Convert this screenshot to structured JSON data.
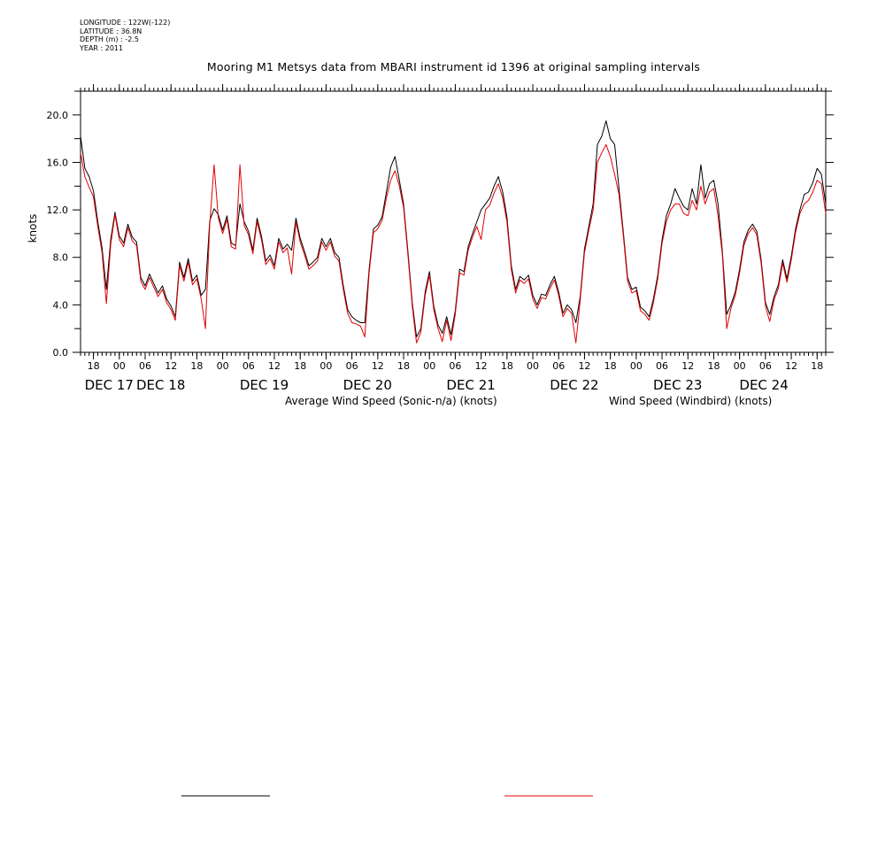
{
  "header": {
    "longitude": "LONGITUDE : 122W(-122)",
    "latitude": "LATITUDE : 36.8N",
    "depth": "DEPTH (m) : -2.5",
    "year": "YEAR : 2011"
  },
  "chart_data": {
    "type": "line",
    "title": "Mooring M1 Metsys data from MBARI instrument id 1396 at original sampling intervals",
    "ylabel": "knots",
    "xlabel": "",
    "ylim": [
      0,
      22
    ],
    "yticks": [
      0,
      4,
      8,
      12,
      16,
      20
    ],
    "ytick_labels": [
      "0.0",
      "4.0",
      "8.0",
      "12.0",
      "16.0",
      "20.0"
    ],
    "xlim_hours": [
      15,
      188
    ],
    "hour_ticks": [
      {
        "h": 18,
        "label": "18"
      },
      {
        "h": 24,
        "label": "00"
      },
      {
        "h": 30,
        "label": "06"
      },
      {
        "h": 36,
        "label": "12"
      },
      {
        "h": 42,
        "label": "18"
      },
      {
        "h": 48,
        "label": "00"
      },
      {
        "h": 54,
        "label": "06"
      },
      {
        "h": 60,
        "label": "12"
      },
      {
        "h": 66,
        "label": "18"
      },
      {
        "h": 72,
        "label": "00"
      },
      {
        "h": 78,
        "label": "06"
      },
      {
        "h": 84,
        "label": "12"
      },
      {
        "h": 90,
        "label": "18"
      },
      {
        "h": 96,
        "label": "00"
      },
      {
        "h": 102,
        "label": "06"
      },
      {
        "h": 108,
        "label": "12"
      },
      {
        "h": 114,
        "label": "18"
      },
      {
        "h": 120,
        "label": "00"
      },
      {
        "h": 126,
        "label": "06"
      },
      {
        "h": 132,
        "label": "12"
      },
      {
        "h": 138,
        "label": "18"
      },
      {
        "h": 144,
        "label": "00"
      },
      {
        "h": 150,
        "label": "06"
      },
      {
        "h": 156,
        "label": "12"
      },
      {
        "h": 162,
        "label": "18"
      },
      {
        "h": 168,
        "label": "00"
      },
      {
        "h": 174,
        "label": "06"
      },
      {
        "h": 180,
        "label": "12"
      },
      {
        "h": 186,
        "label": "18"
      }
    ],
    "date_labels": [
      {
        "h": 18,
        "label": "DEC 17"
      },
      {
        "h": 30,
        "label": "DEC 18"
      },
      {
        "h": 54,
        "label": "DEC 19"
      },
      {
        "h": 78,
        "label": "DEC 20"
      },
      {
        "h": 102,
        "label": "DEC 21"
      },
      {
        "h": 126,
        "label": "DEC 22"
      },
      {
        "h": 150,
        "label": "DEC 23"
      },
      {
        "h": 170,
        "label": "DEC 24"
      }
    ],
    "series": [
      {
        "name": "Average Wind Speed (Sonic-n/a) (knots)",
        "color": "#000000",
        "x_hours": [
          15,
          16,
          17,
          18,
          19,
          20,
          21,
          22,
          23,
          24,
          25,
          26,
          27,
          28,
          29,
          30,
          31,
          32,
          33,
          34,
          35,
          36,
          37,
          38,
          39,
          40,
          41,
          42,
          43,
          44,
          45,
          46,
          47,
          48,
          49,
          50,
          51,
          52,
          53,
          54,
          55,
          56,
          57,
          58,
          59,
          60,
          61,
          62,
          63,
          64,
          65,
          66,
          67,
          68,
          69,
          70,
          71,
          72,
          73,
          74,
          75,
          76,
          77,
          78,
          79,
          80,
          81,
          82,
          83,
          84,
          85,
          86,
          87,
          88,
          89,
          90,
          91,
          92,
          93,
          94,
          95,
          96,
          97,
          98,
          99,
          100,
          101,
          102,
          103,
          104,
          105,
          106,
          107,
          108,
          109,
          110,
          111,
          112,
          113,
          114,
          115,
          116,
          117,
          118,
          119,
          120,
          121,
          122,
          123,
          124,
          125,
          126,
          127,
          128,
          129,
          130,
          131,
          132,
          133,
          134,
          135,
          136,
          137,
          138,
          139,
          140,
          141,
          142,
          143,
          144,
          145,
          146,
          147,
          148,
          149,
          150,
          151,
          152,
          153,
          154,
          155,
          156,
          157,
          158,
          159,
          160,
          161,
          162,
          163,
          164,
          165,
          166,
          167,
          168,
          169,
          170,
          171,
          172,
          173,
          174,
          175,
          176,
          177,
          178,
          179,
          180,
          181,
          182,
          183,
          184,
          185,
          186,
          187,
          188
        ],
        "values": [
          18.2,
          15.5,
          14.8,
          13.6,
          11.0,
          8.8,
          5.3,
          9.5,
          11.8,
          9.8,
          9.2,
          10.8,
          9.7,
          9.3,
          6.3,
          5.6,
          6.6,
          5.8,
          5.0,
          5.6,
          4.5,
          3.9,
          3.0,
          7.6,
          6.3,
          7.9,
          6.0,
          6.5,
          4.8,
          5.3,
          11.1,
          12.1,
          11.6,
          10.3,
          11.5,
          9.2,
          9.0,
          12.5,
          11.0,
          10.2,
          8.6,
          11.3,
          9.8,
          7.7,
          8.2,
          7.3,
          9.6,
          8.7,
          9.1,
          8.6,
          11.3,
          9.6,
          8.5,
          7.3,
          7.6,
          8.0,
          9.6,
          8.9,
          9.6,
          8.4,
          8.0,
          5.6,
          3.6,
          3.0,
          2.7,
          2.5,
          2.5,
          7.0,
          10.4,
          10.7,
          11.4,
          13.5,
          15.6,
          16.5,
          14.5,
          12.5,
          8.5,
          4.2,
          1.3,
          2.0,
          5.1,
          6.8,
          3.9,
          2.3,
          1.6,
          3.0,
          1.5,
          3.5,
          7.0,
          6.8,
          8.9,
          10.0,
          11.0,
          12.0,
          12.5,
          13.0,
          14.0,
          14.8,
          13.5,
          11.4,
          7.3,
          5.3,
          6.4,
          6.1,
          6.5,
          4.8,
          4.0,
          4.9,
          4.8,
          5.7,
          6.4,
          5.1,
          3.3,
          4.0,
          3.6,
          2.5,
          4.7,
          8.7,
          10.6,
          12.5,
          17.5,
          18.2,
          19.5,
          18.0,
          17.5,
          13.8,
          10.2,
          6.3,
          5.3,
          5.5,
          3.8,
          3.5,
          3.0,
          4.5,
          6.5,
          9.5,
          11.5,
          12.5,
          13.8,
          13.0,
          12.3,
          12.0,
          13.8,
          12.5,
          15.8,
          13.0,
          14.2,
          14.5,
          12.5,
          8.5,
          3.2,
          4.0,
          5.1,
          7.0,
          9.3,
          10.3,
          10.8,
          10.2,
          7.8,
          4.2,
          3.2,
          4.7,
          5.7,
          7.8,
          6.2,
          8.1,
          10.4,
          12.0,
          13.3,
          13.5,
          14.3,
          15.5,
          15.0,
          12.5
        ]
      },
      {
        "name": "Wind Speed (Windbird) (knots)",
        "color": "#e00000",
        "x_hours": [
          15,
          16,
          17,
          18,
          19,
          20,
          21,
          22,
          23,
          24,
          25,
          26,
          27,
          28,
          29,
          30,
          31,
          32,
          33,
          34,
          35,
          36,
          37,
          38,
          39,
          40,
          41,
          42,
          43,
          44,
          45,
          46,
          47,
          48,
          49,
          50,
          51,
          52,
          53,
          54,
          55,
          56,
          57,
          58,
          59,
          60,
          61,
          62,
          63,
          64,
          65,
          66,
          67,
          68,
          69,
          70,
          71,
          72,
          73,
          74,
          75,
          76,
          77,
          78,
          79,
          80,
          81,
          82,
          83,
          84,
          85,
          86,
          87,
          88,
          89,
          90,
          91,
          92,
          93,
          94,
          95,
          96,
          97,
          98,
          99,
          100,
          101,
          102,
          103,
          104,
          105,
          106,
          107,
          108,
          109,
          110,
          111,
          112,
          113,
          114,
          115,
          116,
          117,
          118,
          119,
          120,
          121,
          122,
          123,
          124,
          125,
          126,
          127,
          128,
          129,
          130,
          131,
          132,
          133,
          134,
          135,
          136,
          137,
          138,
          139,
          140,
          141,
          142,
          143,
          144,
          145,
          146,
          147,
          148,
          149,
          150,
          151,
          152,
          153,
          154,
          155,
          156,
          157,
          158,
          159,
          160,
          161,
          162,
          163,
          164,
          165,
          166,
          167,
          168,
          169,
          170,
          171,
          172,
          173,
          174,
          175,
          176,
          177,
          178,
          179,
          180,
          181,
          182,
          183,
          184,
          185,
          186,
          187,
          188
        ],
        "values": [
          16.8,
          14.8,
          13.9,
          13.1,
          10.6,
          8.4,
          4.1,
          9.1,
          11.6,
          9.5,
          8.9,
          10.5,
          9.4,
          9.0,
          6.0,
          5.3,
          6.3,
          5.5,
          4.7,
          5.3,
          4.2,
          3.6,
          2.7,
          7.3,
          6.0,
          7.6,
          5.7,
          6.2,
          4.5,
          2.0,
          10.8,
          15.8,
          11.3,
          10.0,
          11.2,
          8.9,
          8.7,
          15.8,
          10.7,
          9.9,
          8.3,
          11.0,
          9.5,
          7.4,
          7.9,
          7.0,
          9.3,
          8.4,
          8.8,
          6.6,
          11.0,
          9.3,
          8.2,
          7.0,
          7.3,
          7.7,
          9.3,
          8.6,
          9.3,
          8.1,
          7.7,
          5.3,
          3.3,
          2.5,
          2.4,
          2.2,
          1.3,
          6.7,
          10.1,
          10.4,
          11.1,
          13.0,
          14.5,
          15.3,
          14.0,
          12.2,
          8.2,
          3.9,
          0.8,
          1.7,
          4.8,
          6.5,
          3.6,
          2.0,
          0.9,
          2.7,
          1.0,
          3.2,
          6.7,
          6.5,
          8.6,
          9.7,
          10.6,
          9.5,
          12.0,
          12.4,
          13.4,
          14.2,
          13.0,
          11.0,
          7.0,
          5.0,
          6.1,
          5.8,
          6.2,
          4.5,
          3.7,
          4.6,
          4.5,
          5.4,
          6.1,
          4.8,
          3.0,
          3.7,
          3.3,
          0.8,
          4.4,
          8.4,
          10.3,
          12.0,
          16.0,
          16.8,
          17.5,
          16.5,
          15.0,
          13.3,
          9.9,
          6.0,
          5.0,
          5.2,
          3.5,
          3.2,
          2.7,
          4.2,
          6.2,
          9.2,
          11.0,
          12.0,
          12.5,
          12.5,
          11.7,
          11.5,
          12.8,
          12.0,
          14.0,
          12.5,
          13.5,
          13.8,
          11.5,
          8.2,
          2.0,
          3.7,
          4.8,
          6.7,
          9.0,
          10.0,
          10.5,
          9.9,
          7.5,
          3.9,
          2.6,
          4.4,
          5.4,
          7.5,
          5.9,
          7.8,
          10.1,
          11.7,
          12.5,
          12.8,
          13.5,
          14.5,
          14.2,
          11.7
        ]
      }
    ],
    "legend": [
      {
        "label": "Average Wind Speed (Sonic-n/a) (knots)",
        "color": "#000000"
      },
      {
        "label": "Wind Speed (Windbird) (knots)",
        "color": "#e00000"
      }
    ],
    "legend_position": "bottom",
    "grid": false
  }
}
